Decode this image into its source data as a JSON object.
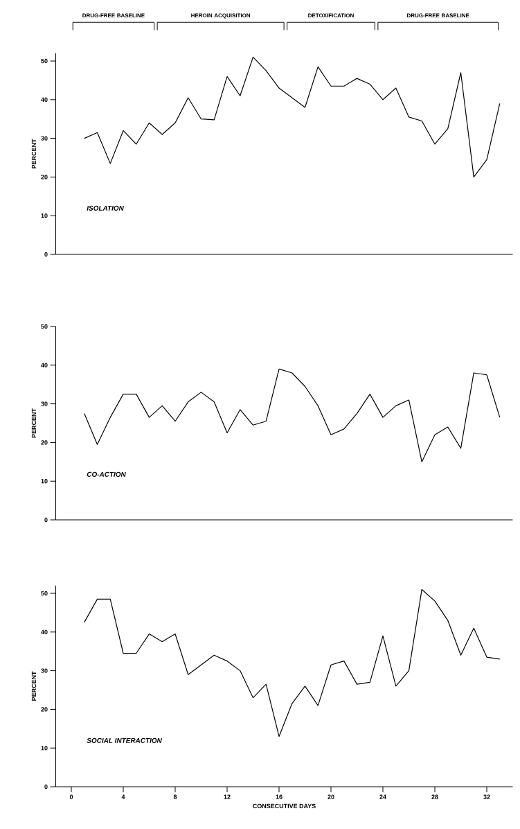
{
  "chart_data": [
    {
      "type": "line",
      "title": "ISOLATION",
      "ylabel": "PERCENT",
      "x": [
        1,
        2,
        3,
        4,
        5,
        6,
        7,
        8,
        9,
        10,
        11,
        12,
        13,
        14,
        15,
        16,
        17,
        18,
        19,
        20,
        21,
        22,
        23,
        24,
        25,
        26,
        27,
        28,
        29,
        30,
        31,
        32,
        33
      ],
      "values": [
        30,
        31.5,
        23.5,
        32,
        28.5,
        34,
        31,
        34,
        40.5,
        35,
        34.8,
        46,
        41,
        51,
        47.5,
        43,
        40.5,
        38,
        48.5,
        43.5,
        43.5,
        45.5,
        44,
        40,
        43,
        35.5,
        34.5,
        28.5,
        32.5,
        47,
        20,
        24.5,
        39
      ],
      "color": "#000000",
      "xlim": [
        -1.2,
        34
      ],
      "ylim": [
        0,
        52
      ],
      "yticks": [
        0,
        10,
        20,
        30,
        40,
        50
      ],
      "tick_labels": "y",
      "marker": "none",
      "line_style": "solid",
      "annotations": [
        "DRUG-FREE BASELINE",
        "HEROIN ACQUISITION",
        "DETOXIFICATION",
        "DRUG-FREE BASELINE"
      ]
    },
    {
      "type": "line",
      "title": "CO-ACTION",
      "ylabel": "PERCENT",
      "x": [
        1,
        2,
        3,
        4,
        5,
        6,
        7,
        8,
        9,
        10,
        11,
        12,
        13,
        14,
        15,
        16,
        17,
        18,
        19,
        20,
        21,
        22,
        23,
        24,
        25,
        26,
        27,
        28,
        29,
        30,
        31,
        32,
        33
      ],
      "values": [
        27.5,
        19.5,
        26.5,
        32.5,
        32.5,
        26.5,
        29.5,
        25.5,
        30.5,
        33,
        30.5,
        22.5,
        28.5,
        24.5,
        25.5,
        39,
        38,
        34.5,
        29.5,
        22,
        23.5,
        27.5,
        32.5,
        26.5,
        29.5,
        31,
        15,
        22,
        24,
        18.5,
        38,
        37.5,
        26.5
      ],
      "color": "#000000",
      "xlim": [
        -1.2,
        34
      ],
      "ylim": [
        0,
        50
      ],
      "yticks": [
        0,
        10,
        20,
        30,
        40,
        50
      ],
      "tick_labels": "y",
      "marker": "none",
      "line_style": "solid"
    },
    {
      "type": "line",
      "title": "SOCIAL INTERACTION",
      "ylabel": "PERCENT",
      "xlabel": "CONSECUTIVE DAYS",
      "x": [
        1,
        2,
        3,
        4,
        5,
        6,
        7,
        8,
        9,
        10,
        11,
        12,
        13,
        14,
        15,
        16,
        17,
        18,
        19,
        20,
        21,
        22,
        23,
        24,
        25,
        26,
        27,
        28,
        29,
        30,
        31,
        32,
        33
      ],
      "values": [
        42.5,
        48.5,
        48.5,
        34.5,
        34.5,
        39.5,
        37.5,
        39.5,
        29,
        31.5,
        34,
        32.5,
        30,
        23,
        26.5,
        13,
        21.5,
        26,
        21,
        31.5,
        32.5,
        26.5,
        27,
        39,
        26,
        30,
        51,
        48,
        43,
        34,
        41,
        33.5,
        33
      ],
      "color": "#000000",
      "xlim": [
        -1.2,
        34
      ],
      "ylim": [
        0,
        52
      ],
      "yticks": [
        0,
        10,
        20,
        30,
        40,
        50
      ],
      "xticks": [
        0,
        4,
        8,
        12,
        16,
        20,
        24,
        28,
        32
      ],
      "marker": "none",
      "line_style": "solid"
    }
  ]
}
